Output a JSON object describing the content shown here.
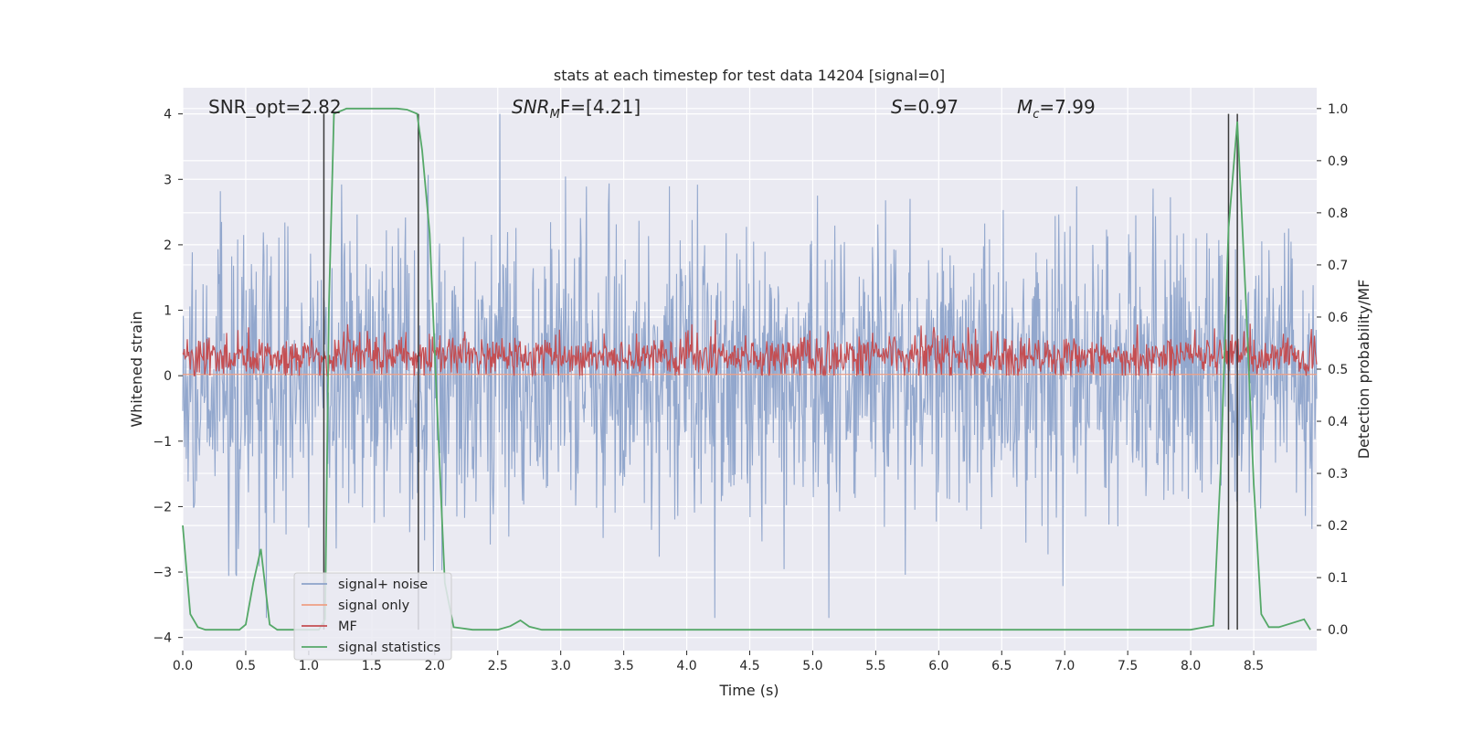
{
  "chart_data": {
    "type": "line",
    "title": "stats at each timestep for test data 14204 [signal=0]",
    "xlabel": "Time (s)",
    "ylabel": "Whitened strain",
    "ylabel_right": "Detection probability/MF",
    "xlim": [
      0.0,
      9.0
    ],
    "ylim": [
      -4.2,
      4.4
    ],
    "ylim_right": [
      -0.04,
      1.04
    ],
    "x_ticks": [
      "0.0",
      "0.5",
      "1.0",
      "1.5",
      "2.0",
      "2.5",
      "3.0",
      "3.5",
      "4.0",
      "4.5",
      "5.0",
      "5.5",
      "6.0",
      "6.5",
      "7.0",
      "7.5",
      "8.0",
      "8.5"
    ],
    "y_ticks": [
      "−4",
      "−3",
      "−2",
      "−1",
      "0",
      "1",
      "2",
      "3",
      "4"
    ],
    "y_ticks_right": [
      "0.0",
      "0.1",
      "0.2",
      "0.3",
      "0.4",
      "0.5",
      "0.6",
      "0.7",
      "0.8",
      "0.9",
      "1.0"
    ],
    "annotations": {
      "snr_opt": "SNR_opt=2.82",
      "snr_mf_sym": "SNR",
      "snr_mf_sub": "M",
      "snr_mf_rest": "F=[4.21]",
      "s_sym": "S",
      "s_rest": "=0.97",
      "mc_sym": "M",
      "mc_sub": "c",
      "mc_rest": "=7.99"
    },
    "series": [
      {
        "name": "signal+ noise",
        "axis": "left",
        "style": "noise",
        "color": "#8da3ca",
        "sample_rate": 2048,
        "duration": 9.0,
        "amplitude_envelope": [
          -3.7,
          4.0
        ],
        "dense_band": [
          -1.4,
          1.7
        ]
      },
      {
        "name": "signal only",
        "axis": "left",
        "color": "#ee9f84",
        "x": [
          0.0,
          9.0
        ],
        "values": [
          0.02,
          0.02
        ]
      },
      {
        "name": "MF",
        "axis": "left",
        "style": "noise",
        "color": "#c44e52",
        "mean": 0.3,
        "range": [
          0.0,
          1.0
        ]
      },
      {
        "name": "signal statistics",
        "axis": "right",
        "color": "#55a868",
        "x": [
          0.0,
          0.06,
          0.12,
          0.18,
          0.25,
          0.35,
          0.45,
          0.5,
          0.56,
          0.62,
          0.69,
          0.75,
          0.82,
          0.9,
          1.0,
          1.08,
          1.13,
          1.16,
          1.2,
          1.3,
          1.5,
          1.7,
          1.78,
          1.86,
          1.9,
          1.96,
          2.02,
          2.08,
          2.15,
          2.3,
          2.5,
          2.6,
          2.68,
          2.75,
          2.85,
          3.2,
          5.0,
          5.2,
          8.0,
          8.18,
          8.24,
          8.3,
          8.37,
          8.44,
          8.5,
          8.56,
          8.62,
          8.7,
          8.9,
          8.95
        ],
        "values": [
          0.2,
          0.03,
          0.005,
          0.0,
          0.0,
          0.0,
          0.0,
          0.01,
          0.09,
          0.155,
          0.01,
          0.0,
          0.0,
          0.0,
          0.0,
          0.0,
          0.02,
          0.62,
          0.99,
          1.0,
          1.0,
          1.0,
          0.998,
          0.99,
          0.92,
          0.76,
          0.42,
          0.09,
          0.005,
          0.0,
          0.0,
          0.007,
          0.018,
          0.006,
          0.0,
          0.0,
          0.0,
          0.0,
          0.0,
          0.008,
          0.32,
          0.77,
          0.975,
          0.62,
          0.28,
          0.03,
          0.005,
          0.005,
          0.02,
          0.0
        ]
      }
    ],
    "vlines": [
      1.12,
      1.87,
      8.3,
      8.37
    ],
    "legend": {
      "position": "lower-left",
      "entries": [
        {
          "label": "signal+ noise",
          "color": "#8da3ca"
        },
        {
          "label": "signal only",
          "color": "#ee9f84"
        },
        {
          "label": "MF",
          "color": "#c44e52"
        },
        {
          "label": "signal statistics",
          "color": "#55a868"
        }
      ]
    },
    "grid": true
  }
}
